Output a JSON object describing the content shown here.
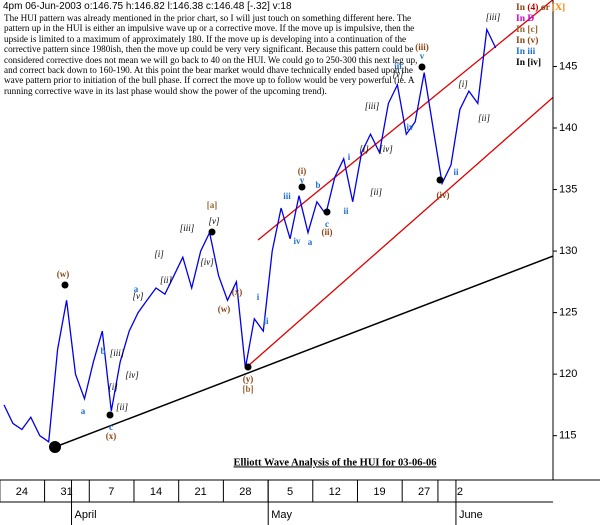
{
  "header": "4pm 06-Jun-2003 o:146.75 h:146.82 l:146.38 c:146.48 [-.32] v:18",
  "commentary": "The HUI pattern was already mentioned in the prior chart, so I will just touch on something different here.  The pattern up in the HUI is either an impulsive wave up or a corrective move.  If the move up is impulsive, then the upside is limited to a maximum of approximately 180.  If the move up is developing into a continuation of the corrective pattern since 1980ish, then the move up could be very very significant.  Because this pattern could be considered corrective does not mean we will go back to 40 on the HUI.  We could go to 250-300 this next leg up, and correct back down to 160-190.  At this point the bear market would dhave technically ended based upon the wave pattern prior to initiation of the bull phase.  If correct the move up to follow would be very powerful (ie. A running corrective wave in its last phase would show the power of the upcoming trend).",
  "chart_data": {
    "type": "line",
    "title": "Elliott Wave Analysis of the HUI for 03-06-06",
    "categories": [
      null,
      null,
      "24",
      null,
      null,
      null,
      null,
      "31",
      null,
      null,
      null,
      null,
      "7",
      null,
      null,
      null,
      null,
      "14",
      null,
      null,
      null,
      null,
      "21",
      null,
      null,
      null,
      null,
      "28",
      null,
      null,
      null,
      null,
      "5",
      null,
      null,
      null,
      null,
      "12",
      null,
      null,
      null,
      null,
      "19",
      null,
      null,
      null,
      null,
      "27",
      null,
      null,
      null,
      "2",
      null,
      null,
      null,
      null
    ],
    "month_categories": [
      null,
      null,
      null,
      null,
      null,
      null,
      null,
      null,
      "April",
      null,
      null,
      null,
      null,
      null,
      null,
      null,
      null,
      null,
      null,
      null,
      null,
      null,
      null,
      null,
      null,
      null,
      null,
      null,
      null,
      null,
      "May",
      null,
      null,
      null,
      null,
      null,
      null,
      null,
      null,
      null,
      null,
      null,
      null,
      null,
      null,
      null,
      null,
      null,
      null,
      null,
      null,
      "June",
      null,
      null,
      null,
      null
    ],
    "values": [
      117.5,
      116,
      115.5,
      116.5,
      115,
      114.5,
      122,
      126,
      120,
      118,
      121,
      123.5,
      117,
      121,
      123.5,
      125,
      126,
      127,
      126.5,
      128,
      129.5,
      127,
      130,
      131.5,
      128,
      126,
      127.5,
      120.5,
      124.5,
      123.5,
      130,
      133.5,
      131,
      134.5,
      131.5,
      134,
      133,
      136,
      137.5,
      134,
      138,
      139.5,
      138,
      142,
      143.5,
      139.5,
      140.5,
      144.5,
      140,
      135.5,
      137,
      141.5,
      143,
      142,
      148,
      146.5
    ],
    "color": "#0000ee",
    "ylim": [
      111.4,
      150.4
    ],
    "yticks": [
      115,
      120,
      125,
      130,
      135,
      140,
      145
    ],
    "y_axis_side": "right",
    "annotations": [
      {
        "text": "(w)",
        "color": "#8b4513"
      },
      {
        "text": "b",
        "color": "#1e6fd0"
      },
      {
        "text": "[iii]",
        "color": "#000000"
      },
      {
        "text": "[iv]",
        "color": "#000000"
      },
      {
        "text": "a",
        "color": "#1e6fd0"
      },
      {
        "text": "[i]",
        "color": "#000000"
      },
      {
        "text": "[ii]",
        "color": "#000000"
      },
      {
        "text": "c",
        "color": "#1e6fd0"
      },
      {
        "text": "(x)",
        "color": "#8b4513"
      },
      {
        "text": "a",
        "color": "#1e6fd0"
      },
      {
        "text": "[v]",
        "color": "#000000"
      },
      {
        "text": "[i]",
        "color": "#000000"
      },
      {
        "text": "[ii]",
        "color": "#000000"
      },
      {
        "text": "[iii]",
        "color": "#000000"
      },
      {
        "text": "[iv]",
        "color": "#000000"
      },
      {
        "text": "[v]",
        "color": "#000000"
      },
      {
        "text": "[a]",
        "color": "#996633"
      },
      {
        "text": "(w)",
        "color": "#8b4513"
      },
      {
        "text": "(x)",
        "color": "#8b4513"
      },
      {
        "text": "(y)",
        "color": "#8b4513"
      },
      {
        "text": "[b]",
        "color": "#996633"
      },
      {
        "text": "i",
        "color": "#1e6fd0"
      },
      {
        "text": "ii",
        "color": "#1e6fd0"
      },
      {
        "text": "iii",
        "color": "#1e6fd0"
      },
      {
        "text": "iv",
        "color": "#1e6fd0"
      },
      {
        "text": "v",
        "color": "#1e6fd0"
      },
      {
        "text": "(i)",
        "color": "#8b4513"
      },
      {
        "text": "a",
        "color": "#1e6fd0"
      },
      {
        "text": "b",
        "color": "#1e6fd0"
      },
      {
        "text": "c",
        "color": "#1e6fd0"
      },
      {
        "text": "(ii)",
        "color": "#8b4513"
      },
      {
        "text": "i",
        "color": "#1e6fd0"
      },
      {
        "text": "ii",
        "color": "#1e6fd0"
      },
      {
        "text": "[i]",
        "color": "#000000"
      },
      {
        "text": "[ii]",
        "color": "#000000"
      },
      {
        "text": "[iii]",
        "color": "#000000"
      },
      {
        "text": "[iv]",
        "color": "#000000"
      },
      {
        "text": "[v]",
        "color": "#000000"
      },
      {
        "text": "iii",
        "color": "#1e6fd0"
      },
      {
        "text": "iv",
        "color": "#1e6fd0"
      },
      {
        "text": "(iii)",
        "color": "#8b4513"
      },
      {
        "text": "v",
        "color": "#1e6fd0"
      },
      {
        "text": "(iv)",
        "color": "#8b4513"
      },
      {
        "text": "ii",
        "color": "#1e6fd0"
      },
      {
        "text": "[i]",
        "color": "#000000"
      },
      {
        "text": "[ii]",
        "color": "#000000"
      },
      {
        "text": "[iii]",
        "color": "#000000"
      }
    ],
    "legend": [
      [
        {
          "text": "In",
          "color": "#8b4513"
        },
        {
          "text": "(4)",
          "color": "#c00000"
        },
        {
          "text": "or",
          "color": "#8b4513"
        },
        {
          "text": "[X]",
          "color": "#ff8000"
        }
      ],
      [
        {
          "text": "In",
          "color": "#cc00cc"
        },
        {
          "text": "D",
          "color": "#cc00cc"
        }
      ],
      [
        {
          "text": "In",
          "color": "#996633"
        },
        {
          "text": "[c]",
          "color": "#996633"
        }
      ],
      [
        {
          "text": "In",
          "color": "#8b4513"
        },
        {
          "text": "(v)",
          "color": "#8b4513"
        }
      ],
      [
        {
          "text": "In",
          "color": "#1e6fd0"
        },
        {
          "text": "iii",
          "color": "#1e6fd0"
        }
      ],
      [
        {
          "text": "In",
          "color": "#000000"
        },
        {
          "text": "[iv]",
          "color": "#000000"
        }
      ]
    ]
  }
}
